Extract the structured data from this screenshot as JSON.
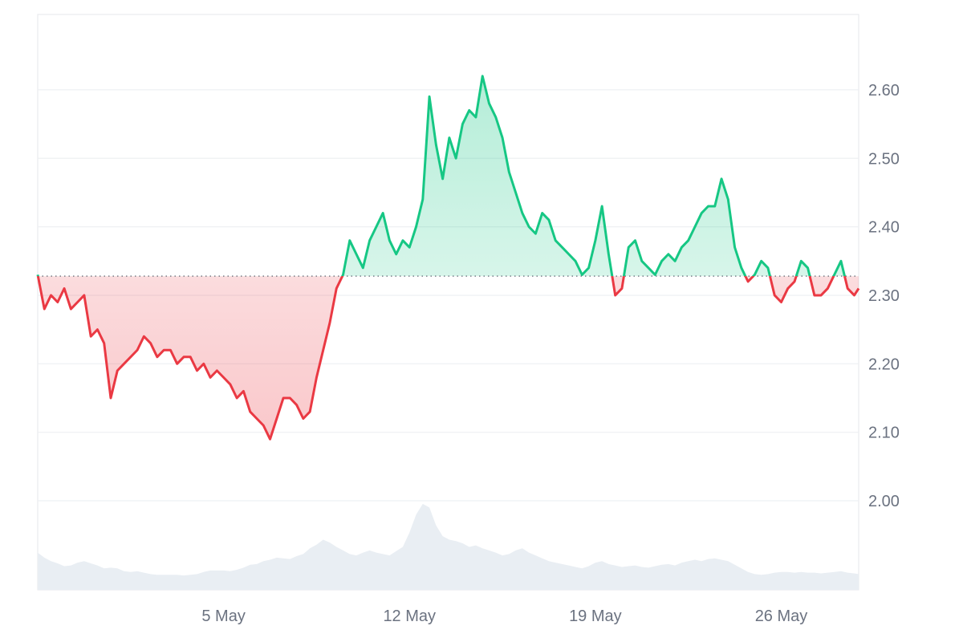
{
  "chart_data": {
    "type": "line",
    "title": "",
    "xlabel": "",
    "ylabel": "",
    "baseline": 2.328,
    "ylim": [
      1.87,
      2.71
    ],
    "yticks": [
      2.0,
      2.1,
      2.2,
      2.3,
      2.4,
      2.5,
      2.6
    ],
    "ytick_labels": [
      "2.00",
      "2.10",
      "2.20",
      "2.30",
      "2.40",
      "2.50",
      "2.60"
    ],
    "xlim": [
      "2024-04-28",
      "2024-05-28T22:00"
    ],
    "xticks": [
      "2024-05-05",
      "2024-05-12",
      "2024-05-19",
      "2024-05-26"
    ],
    "xtick_labels": [
      "5 May",
      "12 May",
      "19 May",
      "26 May"
    ],
    "grid": true,
    "colors": {
      "up": "#16c784",
      "down": "#ea3943",
      "volume": "#e9eef3",
      "grid": "#eef0f3"
    },
    "series": [
      {
        "x": [
          "2024-04-28T00:00",
          "2024-04-28T06:00",
          "2024-04-28T12:00",
          "2024-04-28T18:00",
          "2024-04-29T00:00",
          "2024-04-29T06:00",
          "2024-04-29T12:00",
          "2024-04-29T18:00",
          "2024-04-30T00:00",
          "2024-04-30T06:00",
          "2024-04-30T12:00",
          "2024-04-30T18:00",
          "2024-05-01T00:00",
          "2024-05-01T06:00",
          "2024-05-01T12:00",
          "2024-05-01T18:00",
          "2024-05-02T00:00",
          "2024-05-02T06:00",
          "2024-05-02T12:00",
          "2024-05-02T18:00",
          "2024-05-03T00:00",
          "2024-05-03T06:00",
          "2024-05-03T12:00",
          "2024-05-03T18:00",
          "2024-05-04T00:00",
          "2024-05-04T06:00",
          "2024-05-04T12:00",
          "2024-05-04T18:00",
          "2024-05-05T00:00",
          "2024-05-05T06:00",
          "2024-05-05T12:00",
          "2024-05-05T18:00",
          "2024-05-06T00:00",
          "2024-05-06T06:00",
          "2024-05-06T12:00",
          "2024-05-06T18:00",
          "2024-05-07T00:00",
          "2024-05-07T06:00",
          "2024-05-07T12:00",
          "2024-05-07T18:00",
          "2024-05-08T00:00",
          "2024-05-08T06:00",
          "2024-05-08T12:00",
          "2024-05-08T18:00",
          "2024-05-09T00:00",
          "2024-05-09T06:00",
          "2024-05-09T12:00",
          "2024-05-09T18:00",
          "2024-05-10T00:00",
          "2024-05-10T06:00",
          "2024-05-10T12:00",
          "2024-05-10T18:00",
          "2024-05-11T00:00",
          "2024-05-11T06:00",
          "2024-05-11T12:00",
          "2024-05-11T18:00",
          "2024-05-12T00:00",
          "2024-05-12T06:00",
          "2024-05-12T12:00",
          "2024-05-12T18:00",
          "2024-05-13T00:00",
          "2024-05-13T06:00",
          "2024-05-13T12:00",
          "2024-05-13T18:00",
          "2024-05-14T00:00",
          "2024-05-14T06:00",
          "2024-05-14T12:00",
          "2024-05-14T18:00",
          "2024-05-15T00:00",
          "2024-05-15T06:00",
          "2024-05-15T12:00",
          "2024-05-15T18:00",
          "2024-05-16T00:00",
          "2024-05-16T06:00",
          "2024-05-16T12:00",
          "2024-05-16T18:00",
          "2024-05-17T00:00",
          "2024-05-17T06:00",
          "2024-05-17T12:00",
          "2024-05-17T18:00",
          "2024-05-18T00:00",
          "2024-05-18T06:00",
          "2024-05-18T12:00",
          "2024-05-18T18:00",
          "2024-05-19T00:00",
          "2024-05-19T06:00",
          "2024-05-19T12:00",
          "2024-05-19T18:00",
          "2024-05-20T00:00",
          "2024-05-20T06:00",
          "2024-05-20T12:00",
          "2024-05-20T18:00",
          "2024-05-21T00:00",
          "2024-05-21T06:00",
          "2024-05-21T12:00",
          "2024-05-21T18:00",
          "2024-05-22T00:00",
          "2024-05-22T06:00",
          "2024-05-22T12:00",
          "2024-05-22T18:00",
          "2024-05-23T00:00",
          "2024-05-23T06:00",
          "2024-05-23T12:00",
          "2024-05-23T18:00",
          "2024-05-24T00:00",
          "2024-05-24T06:00",
          "2024-05-24T12:00",
          "2024-05-24T18:00",
          "2024-05-25T00:00",
          "2024-05-25T06:00",
          "2024-05-25T12:00",
          "2024-05-25T18:00",
          "2024-05-26T00:00",
          "2024-05-26T06:00",
          "2024-05-26T12:00",
          "2024-05-26T18:00",
          "2024-05-27T00:00",
          "2024-05-27T06:00",
          "2024-05-27T12:00",
          "2024-05-27T18:00",
          "2024-05-28T00:00",
          "2024-05-28T06:00",
          "2024-05-28T12:00",
          "2024-05-28T18:00",
          "2024-05-28T22:00"
        ],
        "values": [
          2.33,
          2.28,
          2.3,
          2.29,
          2.31,
          2.28,
          2.29,
          2.3,
          2.24,
          2.25,
          2.23,
          2.15,
          2.19,
          2.2,
          2.21,
          2.22,
          2.24,
          2.23,
          2.21,
          2.22,
          2.22,
          2.2,
          2.21,
          2.21,
          2.19,
          2.2,
          2.18,
          2.19,
          2.18,
          2.17,
          2.15,
          2.16,
          2.13,
          2.12,
          2.11,
          2.09,
          2.12,
          2.15,
          2.15,
          2.14,
          2.12,
          2.13,
          2.18,
          2.22,
          2.26,
          2.31,
          2.33,
          2.38,
          2.36,
          2.34,
          2.38,
          2.4,
          2.42,
          2.38,
          2.36,
          2.38,
          2.37,
          2.4,
          2.44,
          2.59,
          2.52,
          2.47,
          2.53,
          2.5,
          2.55,
          2.57,
          2.56,
          2.62,
          2.58,
          2.56,
          2.53,
          2.48,
          2.45,
          2.42,
          2.4,
          2.39,
          2.42,
          2.41,
          2.38,
          2.37,
          2.36,
          2.35,
          2.33,
          2.34,
          2.38,
          2.43,
          2.36,
          2.3,
          2.31,
          2.37,
          2.38,
          2.35,
          2.34,
          2.33,
          2.35,
          2.36,
          2.35,
          2.37,
          2.38,
          2.4,
          2.42,
          2.43,
          2.43,
          2.47,
          2.44,
          2.37,
          2.34,
          2.32,
          2.33,
          2.35,
          2.34,
          2.3,
          2.29,
          2.31,
          2.32,
          2.35,
          2.34,
          2.3,
          2.3,
          2.31,
          2.33,
          2.35,
          2.31,
          2.3,
          2.31
        ]
      }
    ],
    "volume": [
      0.52,
      0.45,
      0.4,
      0.37,
      0.33,
      0.34,
      0.38,
      0.4,
      0.37,
      0.34,
      0.3,
      0.31,
      0.3,
      0.26,
      0.25,
      0.26,
      0.24,
      0.22,
      0.21,
      0.21,
      0.21,
      0.21,
      0.2,
      0.21,
      0.22,
      0.25,
      0.27,
      0.27,
      0.27,
      0.26,
      0.28,
      0.31,
      0.35,
      0.36,
      0.4,
      0.42,
      0.45,
      0.44,
      0.43,
      0.47,
      0.5,
      0.58,
      0.63,
      0.7,
      0.66,
      0.6,
      0.55,
      0.5,
      0.48,
      0.52,
      0.55,
      0.52,
      0.5,
      0.48,
      0.54,
      0.6,
      0.8,
      1.05,
      1.2,
      1.15,
      0.9,
      0.75,
      0.7,
      0.68,
      0.65,
      0.6,
      0.62,
      0.58,
      0.55,
      0.52,
      0.48,
      0.5,
      0.55,
      0.58,
      0.52,
      0.48,
      0.44,
      0.4,
      0.38,
      0.36,
      0.34,
      0.32,
      0.3,
      0.33,
      0.38,
      0.4,
      0.36,
      0.34,
      0.32,
      0.33,
      0.34,
      0.32,
      0.31,
      0.33,
      0.35,
      0.36,
      0.34,
      0.38,
      0.4,
      0.42,
      0.4,
      0.43,
      0.44,
      0.42,
      0.4,
      0.35,
      0.3,
      0.25,
      0.22,
      0.21,
      0.22,
      0.24,
      0.25,
      0.25,
      0.24,
      0.25,
      0.24,
      0.24,
      0.23,
      0.24,
      0.25,
      0.26,
      0.24,
      0.23,
      0.22
    ]
  }
}
